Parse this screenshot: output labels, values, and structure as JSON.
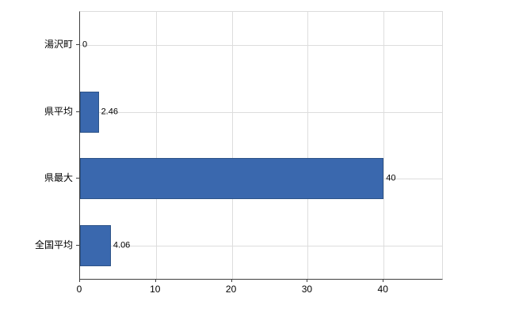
{
  "chart_data": {
    "type": "bar",
    "orientation": "horizontal",
    "title": "",
    "xlabel": "",
    "ylabel": "",
    "categories": [
      "湯沢町",
      "県平均",
      "県最大",
      "全国平均"
    ],
    "values": [
      0,
      2.46,
      40,
      4.06
    ],
    "value_labels": [
      "0",
      "2.46",
      "40",
      "4.06"
    ],
    "xticks": [
      0,
      10,
      20,
      30,
      40
    ],
    "xtick_labels": [
      "0",
      "10",
      "20",
      "30",
      "40"
    ],
    "xlim": [
      0,
      47.7
    ],
    "grid": true,
    "legend_position": "none",
    "bar_color": "#3A68AE",
    "bar_border_color": "#2D5388",
    "grid_color": "#DDDDDD",
    "axis_color": "#404040",
    "background_color": "#FFFFFF"
  }
}
